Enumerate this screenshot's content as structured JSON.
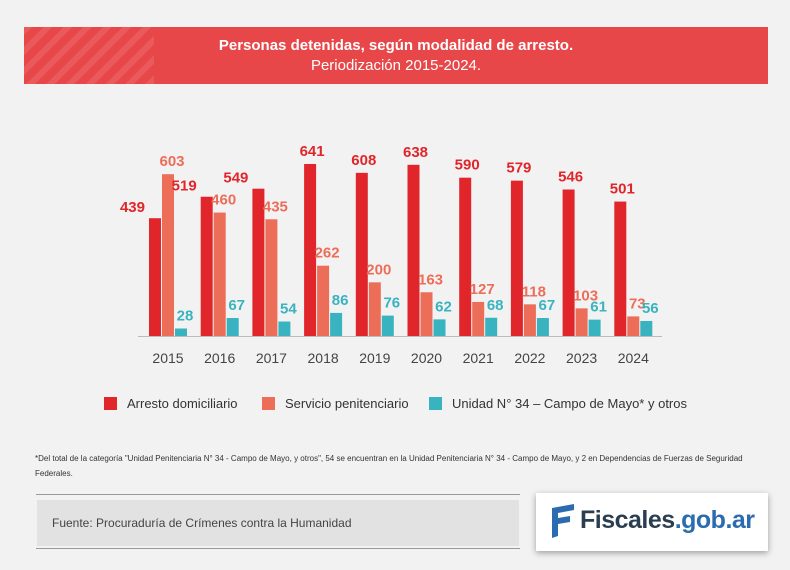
{
  "banner": {
    "title": "Personas detenidas, según modalidad de arresto.",
    "subtitle": "Periodización 2015-2024."
  },
  "chart_data": {
    "type": "bar",
    "categories": [
      "2015",
      "2016",
      "2017",
      "2018",
      "2019",
      "2020",
      "2021",
      "2022",
      "2023",
      "2024"
    ],
    "series": [
      {
        "name": "Arresto domiciliario",
        "color": "#e0262b",
        "values": [
          439,
          519,
          549,
          641,
          608,
          638,
          590,
          579,
          546,
          501
        ]
      },
      {
        "name": "Servicio penitenciario",
        "color": "#ec6e59",
        "values": [
          603,
          460,
          435,
          262,
          200,
          163,
          127,
          118,
          103,
          73
        ]
      },
      {
        "name": "Unidad N° 34 – Campo de Mayo* y otros",
        "color": "#39b3c0",
        "values": [
          28,
          67,
          54,
          86,
          76,
          62,
          68,
          67,
          61,
          56
        ]
      }
    ],
    "ylim": [
      0,
      641
    ],
    "legend_position": "bottom",
    "grid": false
  },
  "footnote": "*Del total de la categoría \"Unidad Penitenciaria N° 34 - Campo de Mayo, y otros\", 54 se encuentran en la Unidad Penitenciaria N° 34 - Campo de Mayo, y 2 en Dependencias de Fuerzas de Seguridad Federales.",
  "source": "Fuente: Procuraduría de Crímenes contra la Humanidad",
  "logo": {
    "name": "Fiscales",
    "domain": ".gob.ar",
    "icon": "flag-logo-icon"
  }
}
